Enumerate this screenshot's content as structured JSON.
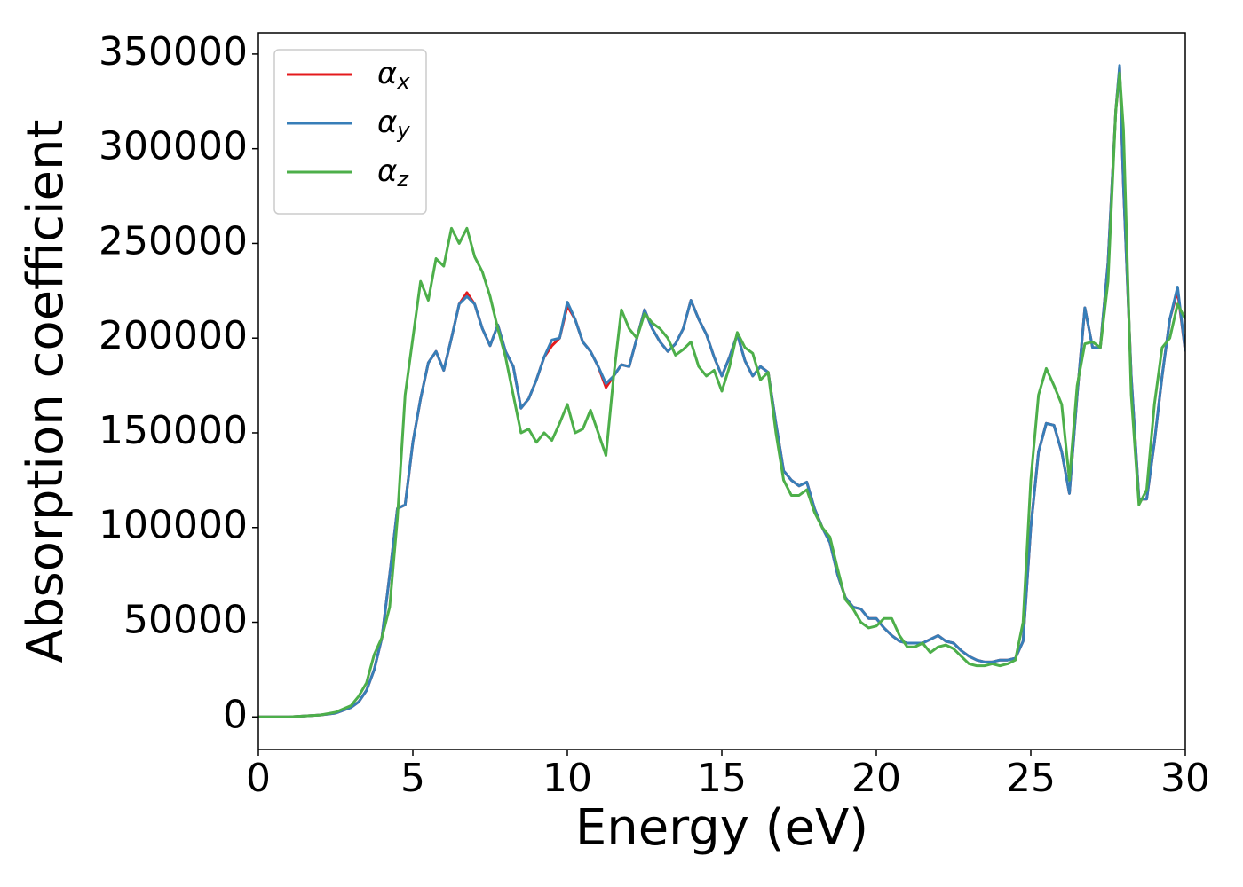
{
  "chart_data": {
    "type": "line",
    "xlabel": "Energy (eV)",
    "ylabel": "Absorption coefficient",
    "x": [
      0,
      1,
      2,
      2.5,
      3,
      3.25,
      3.5,
      3.75,
      4,
      4.25,
      4.5,
      4.75,
      5,
      5.25,
      5.5,
      5.75,
      6,
      6.25,
      6.5,
      6.75,
      7,
      7.25,
      7.5,
      7.75,
      8,
      8.25,
      8.5,
      8.75,
      9,
      9.25,
      9.5,
      9.75,
      10,
      10.25,
      10.5,
      10.75,
      11,
      11.25,
      11.5,
      11.75,
      12,
      12.25,
      12.5,
      12.75,
      13,
      13.25,
      13.5,
      13.75,
      14,
      14.25,
      14.5,
      14.75,
      15,
      15.25,
      15.5,
      15.75,
      16,
      16.25,
      16.5,
      16.75,
      17,
      17.25,
      17.5,
      17.75,
      18,
      18.25,
      18.5,
      18.75,
      19,
      19.25,
      19.5,
      19.75,
      20,
      20.25,
      20.5,
      20.75,
      21,
      21.25,
      21.5,
      21.75,
      22,
      22.25,
      22.5,
      22.75,
      23,
      23.25,
      23.5,
      23.75,
      24,
      24.25,
      24.5,
      24.75,
      25,
      25.25,
      25.5,
      25.75,
      26,
      26.25,
      26.5,
      26.75,
      27,
      27.25,
      27.5,
      27.75,
      27.875,
      28,
      28.25,
      28.5,
      28.75,
      29,
      29.25,
      29.5,
      29.75,
      30
    ],
    "series": [
      {
        "name": "αx",
        "color": "#e41a1c",
        "values": [
          0,
          0,
          1000,
          2000,
          5000,
          8000,
          14000,
          25000,
          42000,
          75000,
          110000,
          112000,
          145000,
          168000,
          187000,
          193000,
          183000,
          200000,
          218000,
          224000,
          218000,
          205000,
          196000,
          207000,
          193000,
          185000,
          163000,
          168000,
          178000,
          190000,
          196000,
          200000,
          217000,
          210000,
          198000,
          193000,
          185000,
          174000,
          180000,
          186000,
          185000,
          200000,
          215000,
          205000,
          198000,
          193000,
          197000,
          205000,
          220000,
          210000,
          202000,
          190000,
          180000,
          190000,
          202000,
          188000,
          180000,
          185000,
          182000,
          155000,
          130000,
          125000,
          122000,
          124000,
          110000,
          100000,
          92000,
          75000,
          63000,
          58000,
          57000,
          52000,
          52000,
          47000,
          43000,
          40000,
          39000,
          39000,
          39000,
          41000,
          43000,
          40000,
          39000,
          35000,
          32000,
          30000,
          29000,
          29000,
          30000,
          30000,
          31000,
          40000,
          100000,
          140000,
          155000,
          154000,
          140000,
          118000,
          170000,
          216000,
          195000,
          195000,
          240000,
          320000,
          343000,
          280000,
          180000,
          115000,
          115000,
          145000,
          180000,
          210000,
          225000,
          193000
        ]
      },
      {
        "name": "αy",
        "color": "#377eb8",
        "values": [
          0,
          0,
          1000,
          2000,
          5000,
          8000,
          14000,
          25000,
          42000,
          75000,
          110000,
          112000,
          145000,
          168000,
          187000,
          193000,
          183000,
          200000,
          218000,
          222000,
          218000,
          205000,
          196000,
          207000,
          193000,
          185000,
          163000,
          168000,
          178000,
          190000,
          199000,
          200000,
          219000,
          210000,
          198000,
          193000,
          185000,
          176000,
          180000,
          186000,
          185000,
          200000,
          215000,
          205000,
          198000,
          193000,
          197000,
          205000,
          220000,
          210000,
          202000,
          190000,
          180000,
          190000,
          202000,
          188000,
          180000,
          185000,
          182000,
          155000,
          130000,
          125000,
          122000,
          124000,
          110000,
          100000,
          92000,
          75000,
          63000,
          58000,
          57000,
          52000,
          52000,
          47000,
          43000,
          40000,
          39000,
          39000,
          39000,
          41000,
          43000,
          40000,
          39000,
          35000,
          32000,
          30000,
          29000,
          29000,
          30000,
          30000,
          31000,
          40000,
          100000,
          140000,
          155000,
          154000,
          140000,
          118000,
          170000,
          216000,
          195000,
          195000,
          240000,
          320000,
          344000,
          280000,
          180000,
          115000,
          115000,
          145000,
          180000,
          210000,
          227000,
          193000
        ]
      },
      {
        "name": "αz",
        "color": "#4daf4a",
        "values": [
          0,
          0,
          1000,
          2500,
          6000,
          11000,
          18000,
          33000,
          42000,
          58000,
          105000,
          170000,
          200000,
          230000,
          220000,
          242000,
          238000,
          258000,
          250000,
          258000,
          243000,
          235000,
          222000,
          205000,
          190000,
          170000,
          150000,
          152000,
          145000,
          150000,
          146000,
          155000,
          165000,
          150000,
          152000,
          162000,
          150000,
          138000,
          180000,
          215000,
          205000,
          200000,
          213000,
          208000,
          205000,
          200000,
          191000,
          194000,
          198000,
          185000,
          180000,
          183000,
          172000,
          185000,
          203000,
          195000,
          192000,
          178000,
          182000,
          150000,
          125000,
          117000,
          117000,
          120000,
          108000,
          100000,
          95000,
          78000,
          62000,
          57000,
          50000,
          47000,
          48000,
          52000,
          52000,
          43000,
          37000,
          37000,
          39000,
          34000,
          37000,
          38000,
          36000,
          32000,
          28000,
          27000,
          27000,
          28000,
          27000,
          28000,
          30000,
          50000,
          125000,
          170000,
          184000,
          175000,
          165000,
          125000,
          175000,
          197000,
          198000,
          195000,
          230000,
          320000,
          340000,
          310000,
          170000,
          112000,
          120000,
          165000,
          195000,
          200000,
          218000,
          210000
        ]
      }
    ],
    "xlim": [
      0,
      30
    ],
    "xticks": [
      0,
      5,
      10,
      15,
      20,
      25,
      30
    ],
    "ylim": [
      -17200,
      361200
    ],
    "yticks": [
      0,
      50000,
      100000,
      150000,
      200000,
      250000,
      300000,
      350000
    ],
    "grid": false,
    "legend": "upper left"
  }
}
